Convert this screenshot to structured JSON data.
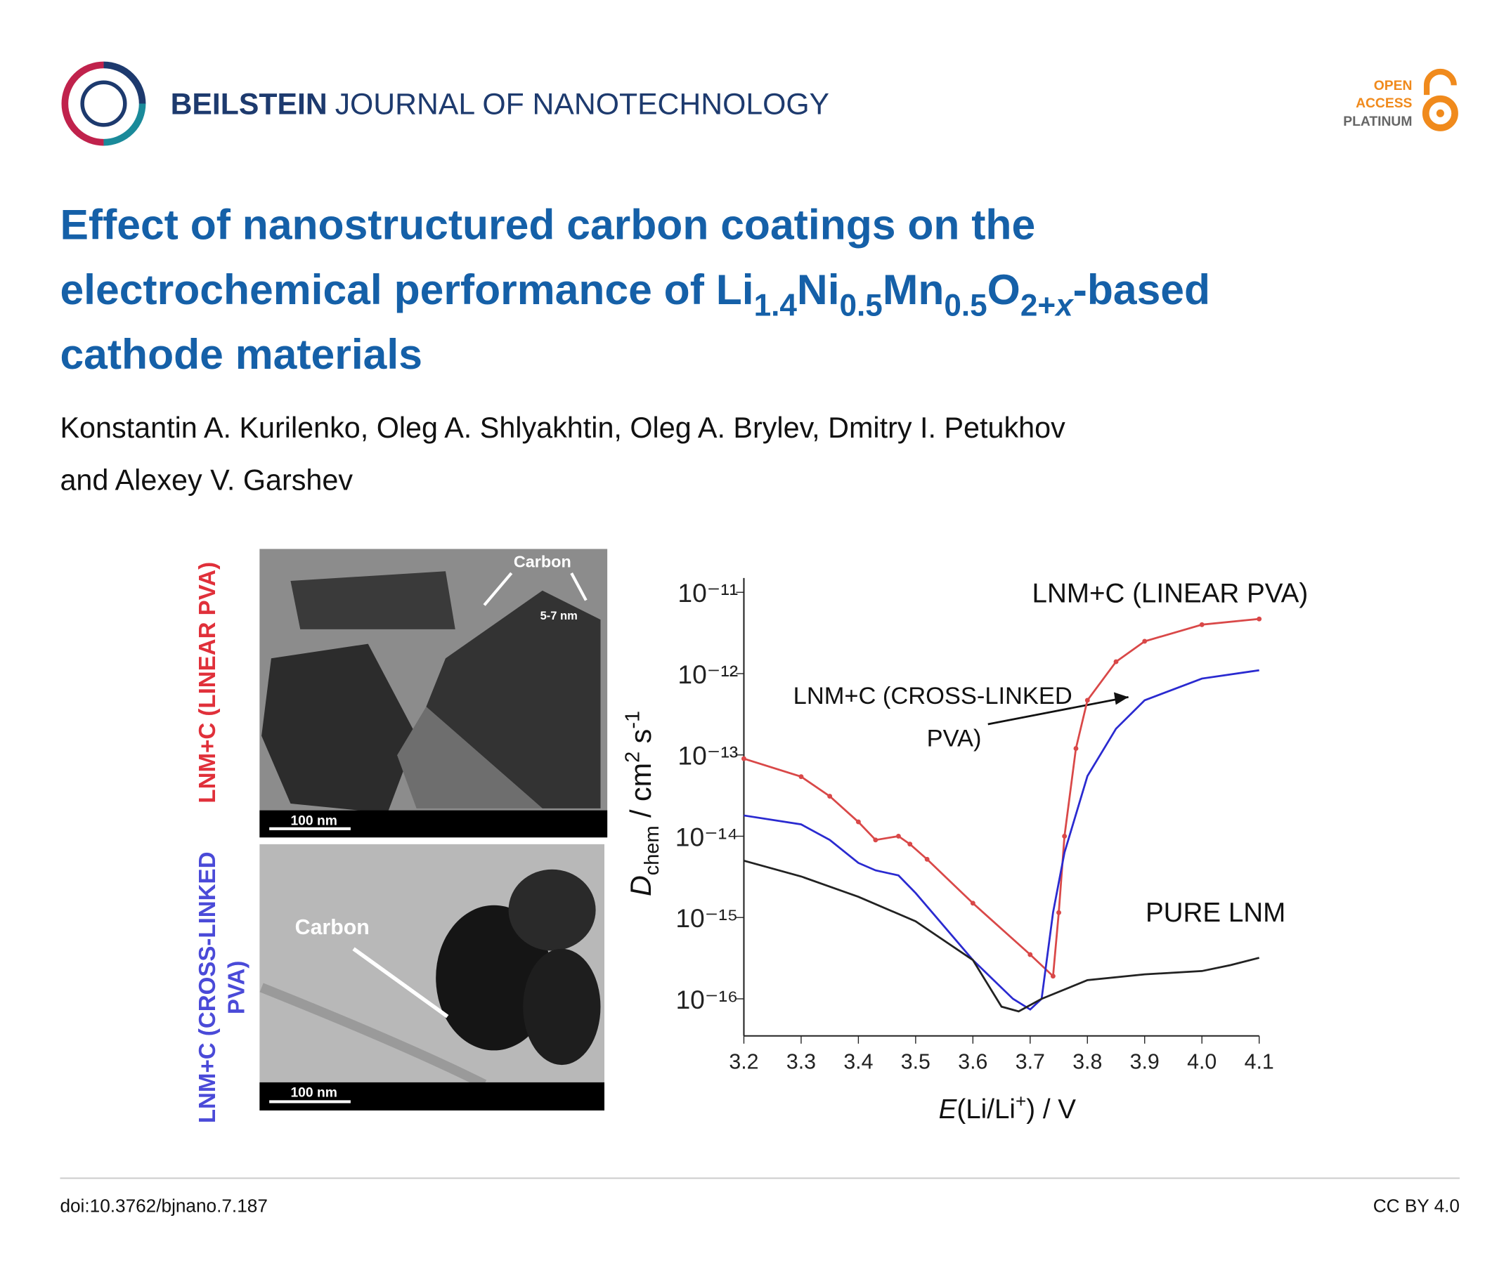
{
  "header": {
    "journal_bold": "BEILSTEIN",
    "journal_rest": "JOURNAL OF NANOTECHNOLOGY",
    "badge": [
      "OPEN",
      "ACCESS",
      "PLATINUM"
    ]
  },
  "title": {
    "line1": "Effect of nanostructured carbon coatings on the",
    "line2": [
      "electrochemical performance of Li",
      "1.4",
      "Ni",
      "0.5",
      "Mn",
      "0.5",
      "O",
      "2+",
      "x",
      "-based"
    ],
    "line3": "cathode materials"
  },
  "authors": [
    "Konstantin A. Kurilenko, Oleg A. Shlyakhtin, Oleg A. Brylev, Dmitry I. Petukhov",
    "and Alexey V. Garshev"
  ],
  "figure": {
    "side_labels": {
      "top": "LNM+C (LINEAR PVA)",
      "bottom": [
        "LNM+C (CROSS-LINKED",
        "PVA)"
      ]
    },
    "tem_top": {
      "label": "Carbon",
      "thickness": "5-7 nm",
      "scale": "100 nm"
    },
    "tem_bottom": {
      "label": "Carbon",
      "scale": "100 nm"
    }
  },
  "chart_data": {
    "type": "line",
    "log_y": true,
    "x_label": [
      "E",
      "(Li/Li",
      "+",
      ") / V"
    ],
    "y_label": [
      "D",
      "chem",
      " / cm",
      "2",
      " s",
      "-1"
    ],
    "xlim": [
      3.2,
      4.1
    ],
    "xticks": [
      3.2,
      3.3,
      3.4,
      3.5,
      3.6,
      3.7,
      3.8,
      3.9,
      {
        "value": 4,
        "label": "4.0"
      },
      4.1
    ],
    "ylim": [
      3.5e-17,
      1.5e-11
    ],
    "yticks": [
      {
        "value": 1e-16,
        "label": "10⁻¹⁶"
      },
      {
        "value": 1e-15,
        "label": "10⁻¹⁵"
      },
      {
        "value": 1e-14,
        "label": "10⁻¹⁴"
      },
      {
        "value": 1e-13,
        "label": "10⁻¹³"
      },
      {
        "value": 1e-12,
        "label": "10⁻¹²"
      },
      {
        "value": 1e-11,
        "label": "10⁻¹¹"
      }
    ],
    "series": [
      {
        "color": "#d94848",
        "x": [
          3.2,
          3.3,
          3.35,
          3.4,
          3.43,
          3.47,
          3.49,
          3.52,
          3.6,
          3.7,
          3.74,
          3.75,
          3.76,
          3.78,
          3.8,
          3.85,
          3.9,
          4.0,
          4.1
        ],
        "values": [
          9e-14,
          5.4e-14,
          3.1e-14,
          1.5e-14,
          9e-15,
          1e-14,
          8e-15,
          5.2e-15,
          1.5e-15,
          3.5e-16,
          1.9e-16,
          1.15e-15,
          1e-14,
          1.2e-13,
          4.7e-13,
          1.4e-12,
          2.5e-12,
          4e-12,
          4.7e-12
        ]
      },
      {
        "color": "#2a2ad0",
        "x": [
          3.2,
          3.3,
          3.35,
          3.4,
          3.43,
          3.47,
          3.5,
          3.6,
          3.67,
          3.7,
          3.72,
          3.74,
          3.76,
          3.8,
          3.85,
          3.9,
          4.0,
          4.1
        ],
        "values": [
          1.8e-14,
          1.4e-14,
          9e-15,
          4.7e-15,
          3.8e-15,
          3.3e-15,
          2e-15,
          3e-16,
          1e-16,
          7.4e-17,
          1e-16,
          1.15e-15,
          6.3e-15,
          5.5e-14,
          2.1e-13,
          4.7e-13,
          8.7e-13,
          1.1e-12
        ]
      },
      {
        "color": "#222222",
        "x": [
          3.2,
          3.3,
          3.4,
          3.5,
          3.6,
          3.65,
          3.68,
          3.72,
          3.8,
          3.9,
          4.0,
          4.05,
          4.1
        ],
        "values": [
          5e-15,
          3.2e-15,
          1.8e-15,
          9e-16,
          3e-16,
          8e-17,
          7e-17,
          1e-16,
          1.7e-16,
          2e-16,
          2.2e-16,
          2.6e-16,
          3.2e-16
        ]
      }
    ],
    "annotations": {
      "linear": "LNM+C (LINEAR PVA)",
      "cross": [
        "LNM+C (CROSS-LINKED",
        "PVA)"
      ],
      "pure": "PURE LNM"
    }
  },
  "footer": {
    "doi": "doi:10.3762/bjnano.7.187",
    "license": "CC BY 4.0"
  }
}
